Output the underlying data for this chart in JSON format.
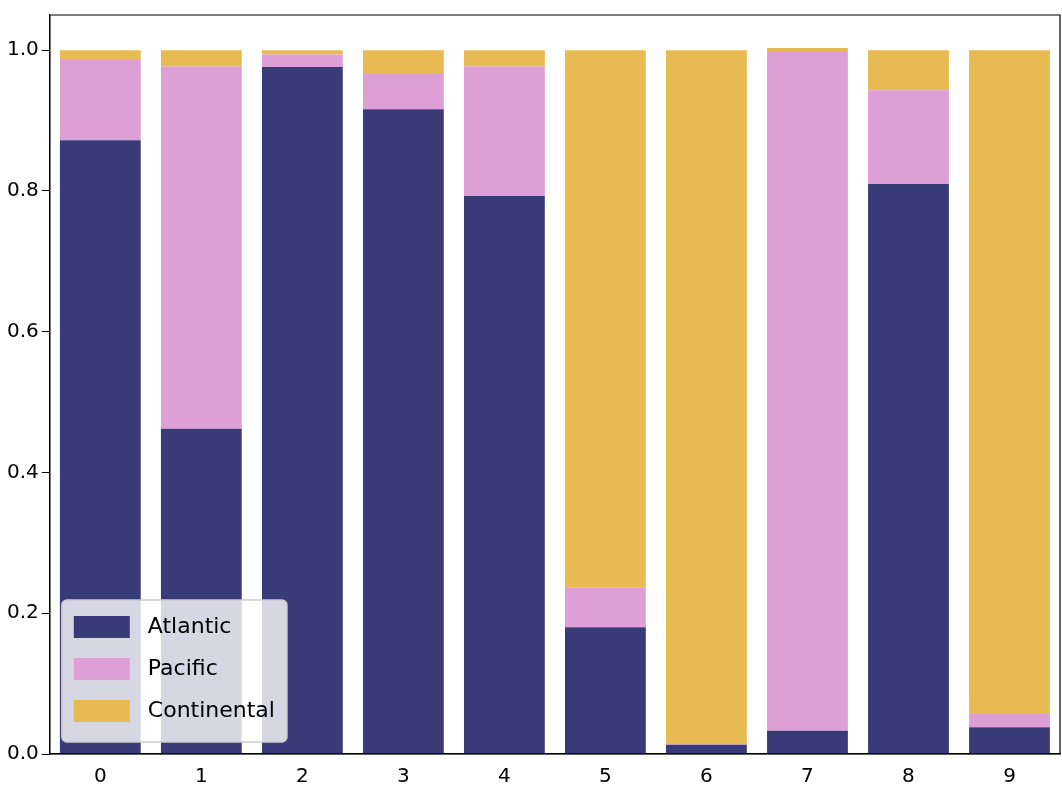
{
  "chart_data": {
    "type": "bar",
    "stacked": true,
    "categories": [
      "0",
      "1",
      "2",
      "3",
      "4",
      "5",
      "6",
      "7",
      "8",
      "9"
    ],
    "series": [
      {
        "name": "Atlantic",
        "color": "#393a78",
        "values": [
          0.872,
          0.462,
          0.976,
          0.916,
          0.793,
          0.18,
          0.013,
          0.033,
          0.81,
          0.038
        ]
      },
      {
        "name": "Pacific",
        "color": "#de9ed6",
        "values": [
          0.114,
          0.515,
          0.018,
          0.05,
          0.184,
          0.057,
          0.001,
          0.966,
          0.133,
          0.019
        ]
      },
      {
        "name": "Continental",
        "color": "#e7ba52",
        "values": [
          0.014,
          0.023,
          0.006,
          0.034,
          0.023,
          0.763,
          0.986,
          0.004,
          0.057,
          0.943
        ]
      }
    ],
    "ylim": [
      0,
      1.05
    ],
    "yticks": [
      {
        "value": 0,
        "label": "0.0"
      },
      {
        "value": 0.2,
        "label": "0.2"
      },
      {
        "value": 0.4,
        "label": "0.4"
      },
      {
        "value": 0.6,
        "label": "0.6"
      },
      {
        "value": 0.8,
        "label": "0.8"
      },
      {
        "value": 1,
        "label": "1.0"
      }
    ],
    "grid": false,
    "legend": "bottom left"
  }
}
